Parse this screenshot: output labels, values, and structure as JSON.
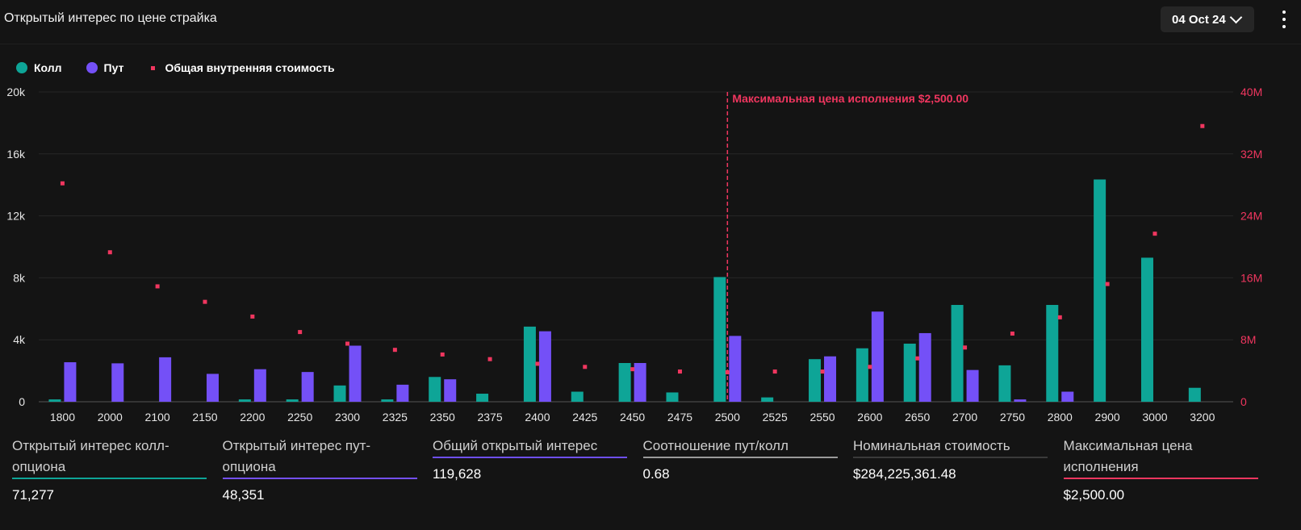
{
  "header": {
    "title": "Открытый интерес по цене страйка",
    "date_selector": "04 Oct 24"
  },
  "legend": {
    "call_label": "Колл",
    "put_label": "Пут",
    "intrinsic_label": "Общая внутренняя стоимость"
  },
  "colors": {
    "call": "#0ea597",
    "put": "#7450f7",
    "intrinsic": "#f0365f",
    "oi_total": "#6e4ff0",
    "ratio": "#9a9a9a"
  },
  "chart_data": {
    "type": "bar",
    "categories": [
      "1800",
      "2000",
      "2100",
      "2150",
      "2200",
      "2250",
      "2300",
      "2325",
      "2350",
      "2375",
      "2400",
      "2425",
      "2450",
      "2475",
      "2500",
      "2525",
      "2550",
      "2600",
      "2650",
      "2700",
      "2750",
      "2800",
      "2900",
      "3000",
      "3200"
    ],
    "series": [
      {
        "name": "Колл",
        "axis": "left",
        "values": [
          150,
          0,
          0,
          0,
          150,
          150,
          1050,
          150,
          1600,
          520,
          4850,
          650,
          2500,
          600,
          8050,
          280,
          2750,
          3450,
          3750,
          6250,
          2350,
          6250,
          14350,
          9300,
          900
        ]
      },
      {
        "name": "Пут",
        "axis": "left",
        "values": [
          2550,
          2480,
          2870,
          1800,
          2100,
          1920,
          3620,
          1100,
          1450,
          0,
          4550,
          0,
          2500,
          0,
          4250,
          0,
          2930,
          5820,
          4430,
          2050,
          150,
          650,
          0,
          0,
          0
        ]
      },
      {
        "name": "Общая внутренняя стоимость",
        "type": "scatter",
        "axis": "right",
        "values": [
          28.2,
          19.3,
          14.9,
          12.9,
          11.0,
          9.0,
          7.5,
          6.7,
          6.1,
          5.5,
          4.9,
          4.5,
          4.2,
          3.9,
          3.8,
          3.9,
          3.9,
          4.5,
          5.6,
          7.0,
          8.8,
          10.9,
          15.2,
          21.7,
          35.6
        ]
      }
    ],
    "y_left": {
      "min": 0,
      "max": 20000,
      "ticks": [
        "0",
        "4k",
        "8k",
        "12k",
        "16k",
        "20k"
      ]
    },
    "y_right": {
      "min": 0,
      "max": 40,
      "ticks": [
        "0",
        "8M",
        "16M",
        "24M",
        "32M",
        "40M"
      ]
    },
    "max_pain": {
      "category": "2500",
      "label": "Максимальная цена исполнения $2,500.00"
    }
  },
  "stats": [
    {
      "label": "Открытый интерес колл-опциона",
      "value": "71,277",
      "color": "#0ea597"
    },
    {
      "label": "Открытый интерес пут-опциона",
      "value": "48,351",
      "color": "#7450f7"
    },
    {
      "label": "Общий открытый интерес",
      "value": "119,628",
      "color": "#6e4ff0"
    },
    {
      "label": "Соотношение пут/колл",
      "value": "0.68",
      "color": "#9a9a9a"
    },
    {
      "label": "Номинальная стоимость",
      "value": "$284,225,361.48",
      "color": "#3a3a3a"
    },
    {
      "label": "Максимальная цена исполнения",
      "value": "$2,500.00",
      "color": "#f0365f"
    }
  ]
}
